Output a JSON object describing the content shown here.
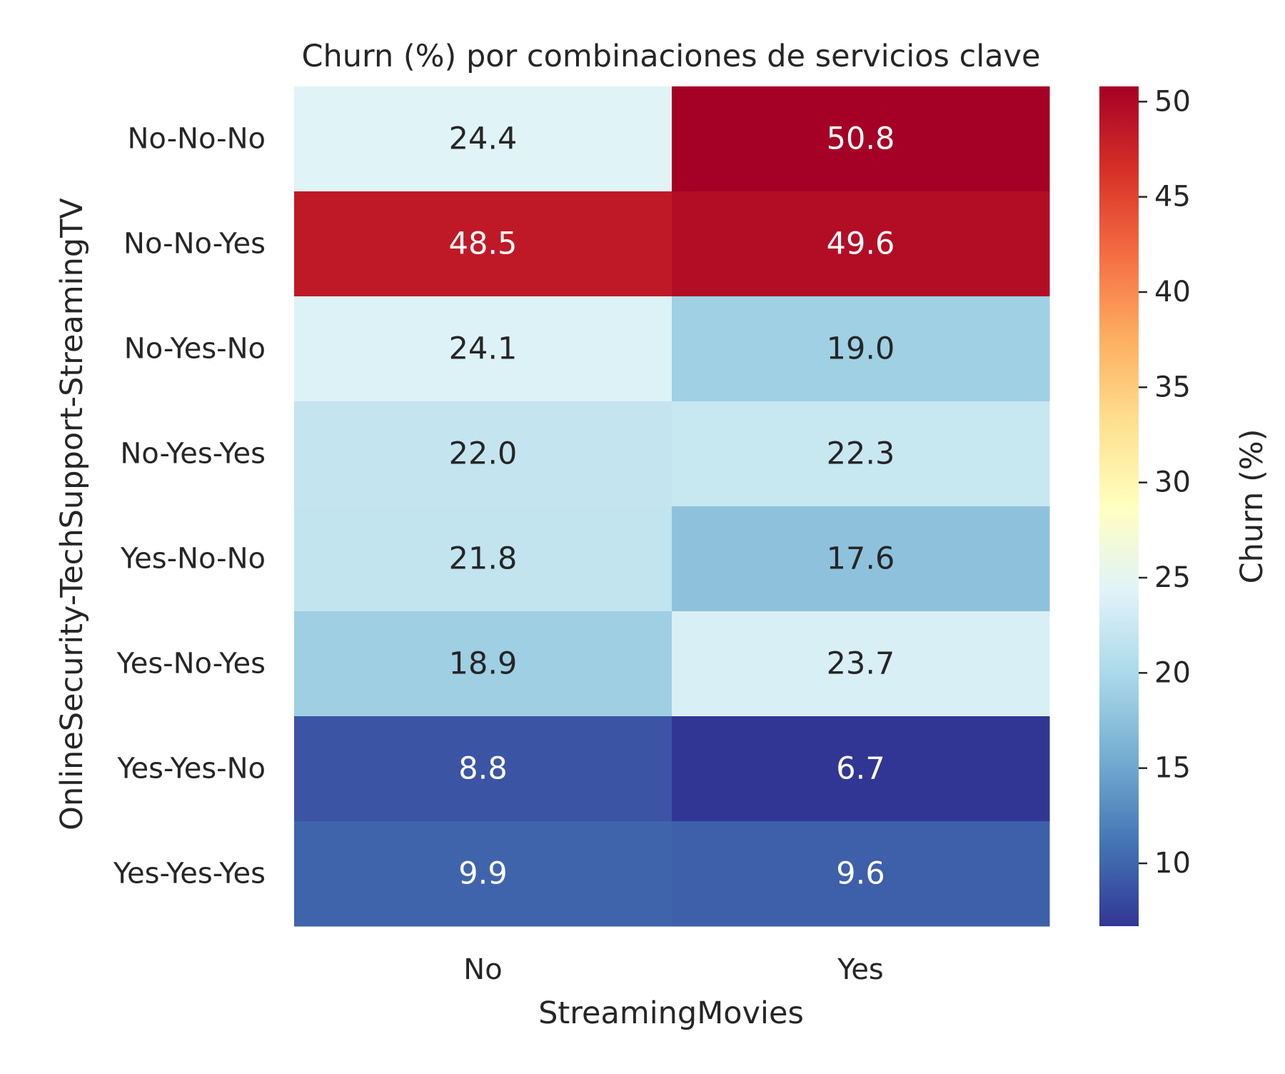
{
  "chart_data": {
    "type": "heatmap",
    "title": "Churn (%) por combinaciones de servicios clave",
    "xlabel": "StreamingMovies",
    "ylabel": "OnlineSecurity-TechSupport-StreamingTV",
    "x_categories": [
      "No",
      "Yes"
    ],
    "y_categories": [
      "No-No-No",
      "No-No-Yes",
      "No-Yes-No",
      "No-Yes-Yes",
      "Yes-No-No",
      "Yes-No-Yes",
      "Yes-Yes-No",
      "Yes-Yes-Yes"
    ],
    "values": [
      [
        24.4,
        50.8
      ],
      [
        48.5,
        49.6
      ],
      [
        24.1,
        19.0
      ],
      [
        22.0,
        22.3
      ],
      [
        21.8,
        17.6
      ],
      [
        18.9,
        23.7
      ],
      [
        8.8,
        6.7
      ],
      [
        9.9,
        9.6
      ]
    ],
    "value_format": "1 decimal",
    "colormap": "RdYlBu_r",
    "colorbar": {
      "label": "Churn (%)",
      "range": [
        6.7,
        50.8
      ],
      "ticks": [
        10,
        15,
        20,
        25,
        30,
        35,
        40,
        45,
        50
      ]
    }
  }
}
